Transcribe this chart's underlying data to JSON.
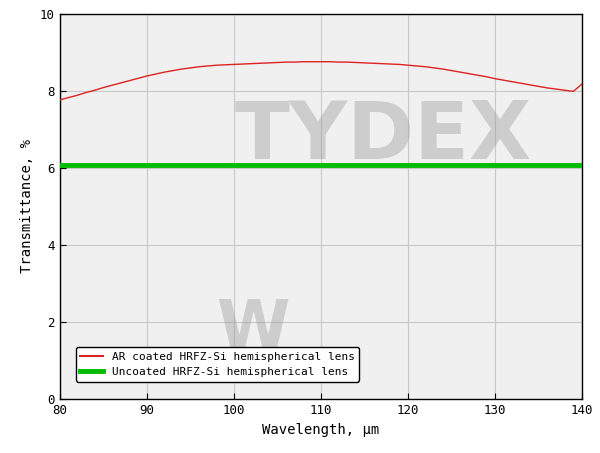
{
  "title": "",
  "xlabel": "Wavelength, μm",
  "ylabel": "Transmittance, %",
  "xlim": [
    80,
    140
  ],
  "ylim": [
    0,
    10
  ],
  "xticks": [
    80,
    90,
    100,
    110,
    120,
    130,
    140
  ],
  "yticks": [
    0,
    2,
    4,
    6,
    8,
    10
  ],
  "grid_color": "#c8c8c8",
  "background_color": "#ffffff",
  "plot_bg_color": "#f0f0f0",
  "ar_color": "#dd2222",
  "uncoated_color": "#00bb00",
  "uncoated_value": 6.07,
  "legend_labels": [
    "AR coated HRFZ-Si hemispherical lens",
    "Uncoated HRFZ-Si hemispherical lens"
  ],
  "watermark_color": "#999999",
  "watermark_alpha": 0.4,
  "ar_x": [
    80,
    81,
    82,
    83,
    84,
    85,
    86,
    87,
    88,
    89,
    90,
    91,
    92,
    93,
    94,
    95,
    96,
    97,
    98,
    99,
    100,
    101,
    102,
    103,
    104,
    105,
    106,
    107,
    108,
    109,
    110,
    111,
    112,
    113,
    114,
    115,
    116,
    117,
    118,
    119,
    120,
    121,
    122,
    123,
    124,
    125,
    126,
    127,
    128,
    129,
    130,
    131,
    132,
    133,
    134,
    135,
    136,
    137,
    138,
    139,
    140
  ],
  "ar_y": [
    7.76,
    7.82,
    7.88,
    7.95,
    8.01,
    8.08,
    8.14,
    8.2,
    8.26,
    8.32,
    8.38,
    8.43,
    8.48,
    8.52,
    8.56,
    8.59,
    8.62,
    8.64,
    8.66,
    8.67,
    8.68,
    8.69,
    8.7,
    8.71,
    8.72,
    8.73,
    8.74,
    8.74,
    8.75,
    8.75,
    8.75,
    8.75,
    8.74,
    8.74,
    8.73,
    8.72,
    8.71,
    8.7,
    8.69,
    8.68,
    8.66,
    8.64,
    8.62,
    8.59,
    8.56,
    8.52,
    8.48,
    8.44,
    8.4,
    8.36,
    8.31,
    8.27,
    8.23,
    8.19,
    8.15,
    8.11,
    8.07,
    8.04,
    8.01,
    7.98,
    8.17
  ]
}
